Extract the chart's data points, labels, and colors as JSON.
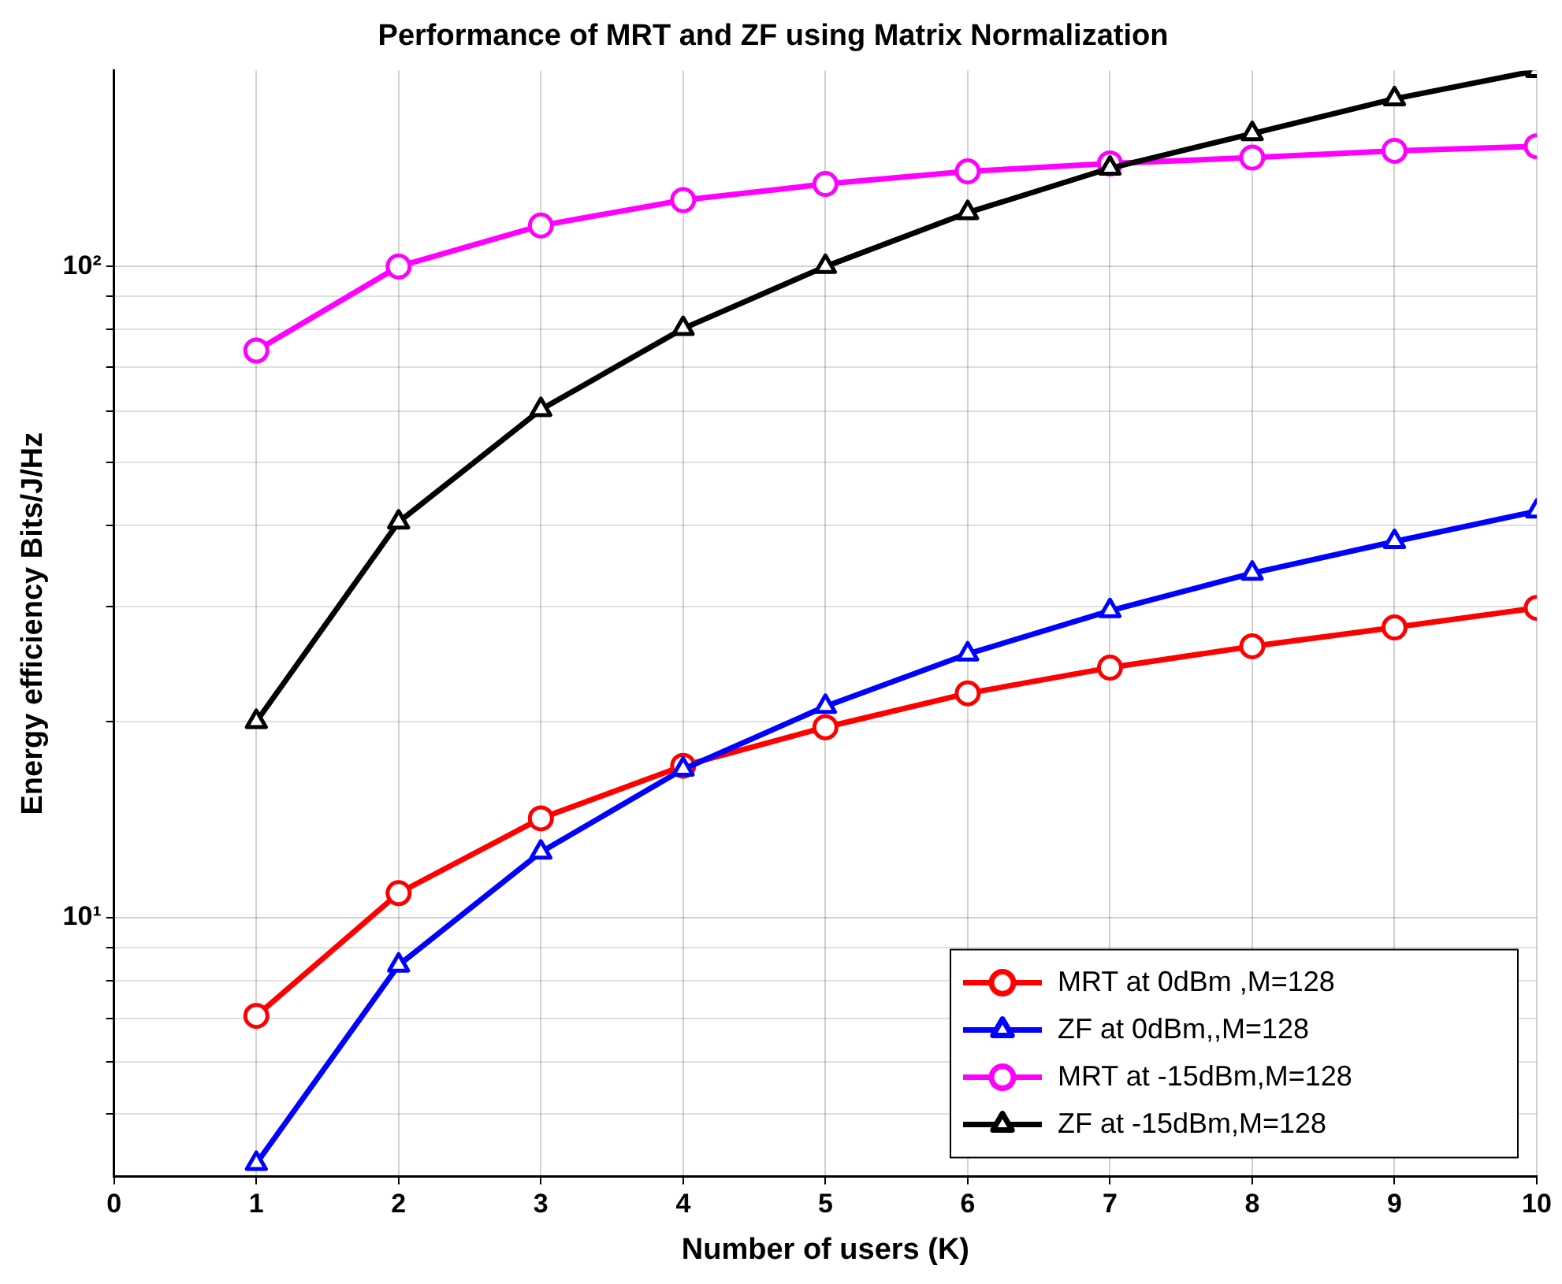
{
  "chart_data": {
    "type": "line",
    "title": "Performance of MRT and ZF using Matrix Normalization",
    "xlabel": "Number of users (K)",
    "ylabel": "Energy efficiency Bits/J/Hz",
    "x": [
      1,
      2,
      3,
      4,
      5,
      6,
      7,
      8,
      9,
      10
    ],
    "series": [
      {
        "name": "MRT at 0dBm ,M=128",
        "color": "#ff0000",
        "marker": "circle",
        "values": [
          7.06,
          10.9,
          14.2,
          17.1,
          19.6,
          22.1,
          24.2,
          26.1,
          27.9,
          29.9
        ]
      },
      {
        "name": "ZF at 0dBm,,M=128",
        "color": "#0000ff",
        "marker": "triangle",
        "values": [
          4.19,
          8.45,
          12.6,
          16.9,
          21.1,
          25.4,
          29.6,
          33.8,
          37.8,
          42.1
        ]
      },
      {
        "name": "MRT at -15dBm,M=128",
        "color": "#ff00ff",
        "marker": "circle",
        "values": [
          74.3,
          100,
          115.6,
          126.5,
          133.9,
          140,
          144,
          147,
          150.6,
          153
        ]
      },
      {
        "name": "ZF at -15dBm,M=128",
        "color": "#000000",
        "marker": "triangle",
        "values": [
          20,
          40.5,
          60.3,
          80.3,
          100,
          121,
          141.6,
          160,
          181,
          200
        ]
      }
    ],
    "log": "y",
    "xlim": [
      0,
      10
    ],
    "xticks": [
      0,
      1,
      2,
      3,
      4,
      5,
      6,
      7,
      8,
      9,
      10
    ],
    "ylim": [
      4,
      200
    ],
    "yticks": [
      {
        "value": 5,
        "label": null
      },
      {
        "value": 6,
        "label": null
      },
      {
        "value": 7,
        "label": null
      },
      {
        "value": 8,
        "label": null
      },
      {
        "value": 9,
        "label": null
      },
      {
        "value": 10,
        "label": "10¹"
      },
      {
        "value": 20,
        "label": null
      },
      {
        "value": 30,
        "label": null
      },
      {
        "value": 40,
        "label": null
      },
      {
        "value": 50,
        "label": null
      },
      {
        "value": 60,
        "label": null
      },
      {
        "value": 70,
        "label": null
      },
      {
        "value": 80,
        "label": null
      },
      {
        "value": 90,
        "label": null
      },
      {
        "value": 100,
        "label": "10²"
      }
    ],
    "grid": true,
    "legend": "bottom right",
    "line_style": "solid"
  }
}
